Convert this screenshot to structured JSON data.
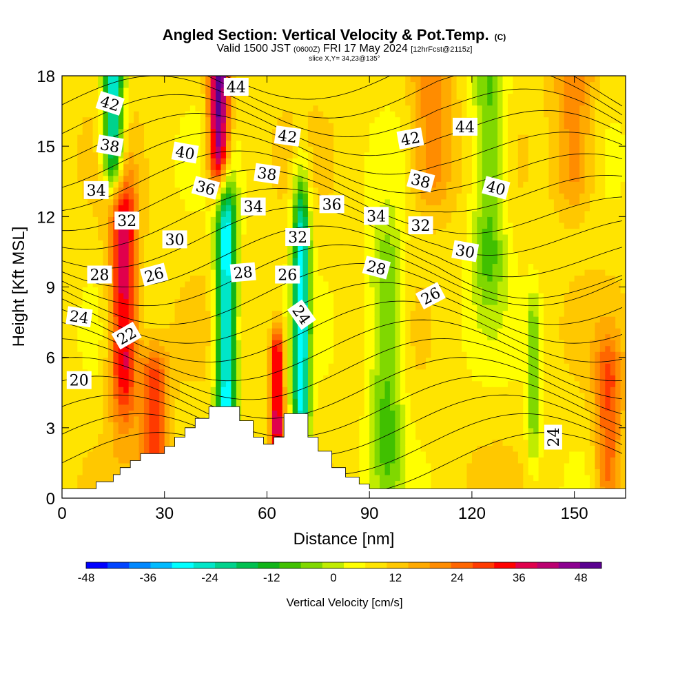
{
  "chart_data": {
    "type": "heatmap",
    "title": "Angled Section: Vertical Velocity & Pot.Temp.",
    "title_mark": "(C)",
    "subtitle_a": "Valid 1500 JST",
    "subtitle_z": "(0600Z)",
    "subtitle_b": "FRI 17 May 2024",
    "subtitle_run": "[12hrFcst@2115z]",
    "slice_label": "slice X,Y= 34,23@135°",
    "xlabel": "Distance [nm]",
    "ylabel": "Height [Kft MSL]",
    "xlim": [
      0,
      165
    ],
    "ylim": [
      0,
      18
    ],
    "x_ticks": [
      0,
      30,
      60,
      90,
      120,
      150
    ],
    "y_ticks": [
      0,
      3,
      6,
      9,
      12,
      15,
      18
    ],
    "colorbar": {
      "label": "Vertical Velocity [cm/s]",
      "range": [
        -48,
        52
      ],
      "step": 4,
      "tick_values": [
        -48,
        -36,
        -24,
        -12,
        0,
        12,
        24,
        36,
        48
      ],
      "colors": [
        "#0000ff",
        "#0044ff",
        "#0088ff",
        "#00bbff",
        "#00ffff",
        "#00e6c8",
        "#00d28c",
        "#00c050",
        "#10b418",
        "#40c000",
        "#80d800",
        "#c0ec00",
        "#ffff00",
        "#ffe400",
        "#ffc800",
        "#ffaa00",
        "#ff8c00",
        "#ff6600",
        "#ff3a00",
        "#ff0000",
        "#e0004c",
        "#bb0070",
        "#8c0090",
        "#5a0090"
      ]
    },
    "terrain_nm_kft": [
      [
        0,
        0.4
      ],
      [
        10,
        0.4
      ],
      [
        10,
        0.7
      ],
      [
        15,
        0.7
      ],
      [
        15,
        1.0
      ],
      [
        17,
        1.0
      ],
      [
        17,
        1.3
      ],
      [
        20,
        1.3
      ],
      [
        20,
        1.6
      ],
      [
        23,
        1.6
      ],
      [
        23,
        1.9
      ],
      [
        30,
        1.9
      ],
      [
        30,
        2.2
      ],
      [
        33,
        2.2
      ],
      [
        33,
        2.6
      ],
      [
        36,
        2.6
      ],
      [
        36,
        3.0
      ],
      [
        39,
        3.0
      ],
      [
        39,
        3.4
      ],
      [
        43,
        3.4
      ],
      [
        43,
        3.9
      ],
      [
        52,
        3.9
      ],
      [
        52,
        3.3
      ],
      [
        56,
        3.3
      ],
      [
        56,
        2.6
      ],
      [
        59,
        2.6
      ],
      [
        59,
        2.3
      ],
      [
        62,
        2.3
      ],
      [
        62,
        2.6
      ],
      [
        65,
        2.6
      ],
      [
        65,
        3.6
      ],
      [
        72,
        3.6
      ],
      [
        72,
        2.6
      ],
      [
        75,
        2.6
      ],
      [
        75,
        2.0
      ],
      [
        79,
        2.0
      ],
      [
        79,
        1.3
      ],
      [
        83,
        1.3
      ],
      [
        83,
        0.9
      ],
      [
        87,
        0.9
      ],
      [
        87,
        0.6
      ],
      [
        90,
        0.6
      ],
      [
        90,
        0.4
      ],
      [
        165,
        0.4
      ]
    ],
    "wind_structures": [
      {
        "x": 15,
        "z0": 15,
        "z1": 18,
        "w": -34,
        "sx": 3,
        "sz": 2
      },
      {
        "x": 18,
        "z0": 6,
        "z1": 11,
        "w": 30,
        "sx": 4,
        "sz": 3
      },
      {
        "x": 27,
        "z0": 2,
        "z1": 5,
        "w": 22,
        "sx": 4,
        "sz": 1.5
      },
      {
        "x": 46,
        "z0": 15,
        "z1": 18,
        "w": 42,
        "sx": 3,
        "sz": 2
      },
      {
        "x": 48,
        "z0": 4,
        "z1": 11,
        "w": -38,
        "sx": 3,
        "sz": 3
      },
      {
        "x": 70,
        "z0": 4,
        "z1": 11,
        "w": -34,
        "sx": 2.5,
        "sz": 3
      },
      {
        "x": 63,
        "z0": 3,
        "z1": 6,
        "w": 30,
        "sx": 2,
        "sz": 1.5
      },
      {
        "x": 95,
        "z0": 3,
        "z1": 9,
        "w": -16,
        "sx": 5,
        "sz": 3
      },
      {
        "x": 125,
        "z0": 11,
        "z1": 17,
        "w": -16,
        "sx": 5,
        "sz": 3
      },
      {
        "x": 138,
        "z0": 3,
        "z1": 7,
        "w": -12,
        "sx": 2,
        "sz": 2
      },
      {
        "x": 160,
        "z0": 1,
        "z1": 5,
        "w": 18,
        "sx": 4,
        "sz": 2
      },
      {
        "x": 108,
        "z0": 14,
        "z1": 18,
        "w": 14,
        "sx": 6,
        "sz": 2
      },
      {
        "x": 150,
        "z0": 14,
        "z1": 18,
        "w": 14,
        "sx": 6,
        "sz": 2
      }
    ],
    "theta_contour_labels": [
      {
        "value": "42",
        "x": 14,
        "z": 16.8,
        "angle": 18
      },
      {
        "value": "38",
        "x": 14,
        "z": 15.0,
        "angle": 10
      },
      {
        "value": "34",
        "x": 10,
        "z": 13.1,
        "angle": 0
      },
      {
        "value": "32",
        "x": 19,
        "z": 11.8,
        "angle": 0
      },
      {
        "value": "30",
        "x": 33,
        "z": 11.0,
        "angle": 0
      },
      {
        "value": "28",
        "x": 11,
        "z": 9.5,
        "angle": 0
      },
      {
        "value": "26",
        "x": 27,
        "z": 9.5,
        "angle": -15
      },
      {
        "value": "24",
        "x": 5,
        "z": 7.7,
        "angle": 8
      },
      {
        "value": "22",
        "x": 19,
        "z": 6.9,
        "angle": -30
      },
      {
        "value": "20",
        "x": 5,
        "z": 5.0,
        "angle": 0
      },
      {
        "value": "44",
        "x": 51,
        "z": 17.5,
        "angle": 0
      },
      {
        "value": "40",
        "x": 36,
        "z": 14.7,
        "angle": 10
      },
      {
        "value": "36",
        "x": 42,
        "z": 13.2,
        "angle": 15
      },
      {
        "value": "38",
        "x": 60,
        "z": 13.8,
        "angle": 8
      },
      {
        "value": "42",
        "x": 66,
        "z": 15.4,
        "angle": 8
      },
      {
        "value": "34",
        "x": 56,
        "z": 12.4,
        "angle": 0
      },
      {
        "value": "28",
        "x": 53,
        "z": 9.6,
        "angle": -5
      },
      {
        "value": "26",
        "x": 66,
        "z": 9.5,
        "angle": 0
      },
      {
        "value": "32",
        "x": 69,
        "z": 11.1,
        "angle": 0
      },
      {
        "value": "36",
        "x": 79,
        "z": 12.5,
        "angle": 0
      },
      {
        "value": "24",
        "x": 70,
        "z": 7.8,
        "angle": 55
      },
      {
        "value": "34",
        "x": 92,
        "z": 12.0,
        "angle": 0
      },
      {
        "value": "28",
        "x": 92,
        "z": 9.8,
        "angle": 15
      },
      {
        "value": "42",
        "x": 102,
        "z": 15.3,
        "angle": -10
      },
      {
        "value": "38",
        "x": 105,
        "z": 13.5,
        "angle": 15
      },
      {
        "value": "32",
        "x": 105,
        "z": 11.6,
        "angle": 0
      },
      {
        "value": "30",
        "x": 118,
        "z": 10.5,
        "angle": 10
      },
      {
        "value": "26",
        "x": 108,
        "z": 8.6,
        "angle": -28
      },
      {
        "value": "44",
        "x": 118,
        "z": 15.8,
        "angle": 0
      },
      {
        "value": "40",
        "x": 127,
        "z": 13.2,
        "angle": 15
      },
      {
        "value": "24",
        "x": 144,
        "z": 2.6,
        "angle": -90
      }
    ]
  }
}
